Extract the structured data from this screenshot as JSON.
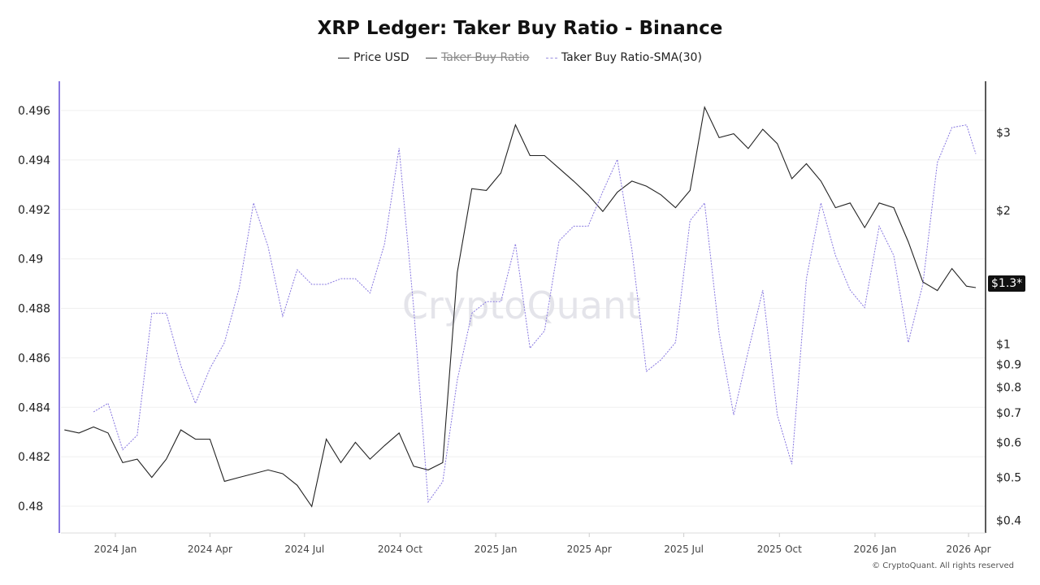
{
  "chart_data": {
    "type": "line",
    "title": "XRP Ledger: Taker Buy Ratio - Binance",
    "legend": {
      "placement": "top-center",
      "entries": [
        {
          "label": "Price USD",
          "color": "#222222",
          "style": "solid",
          "visible": true
        },
        {
          "label": "Taker Buy Ratio",
          "color": "#444444",
          "style": "solid",
          "visible": false
        },
        {
          "label": "Taker Buy Ratio-SMA(30)",
          "color": "#8878e0",
          "style": "dashed",
          "visible": true
        }
      ]
    },
    "watermark": "CryptoQuant",
    "copyright": "© CryptoQuant. All rights reserved",
    "grid": true,
    "left_axis": {
      "ylim": [
        0.479,
        0.4972
      ],
      "ticks": [
        "0.496",
        "0.494",
        "0.492",
        "0.49",
        "0.488",
        "0.486",
        "0.484",
        "0.482",
        "0.48"
      ],
      "tick_values": [
        0.496,
        0.494,
        0.492,
        0.49,
        0.488,
        0.486,
        0.484,
        0.482,
        0.48
      ],
      "color": "#8878e0"
    },
    "right_axis": {
      "scale": "log",
      "ticks": [
        "$3",
        "$2",
        "$1",
        "$0.9",
        "$0.8",
        "$0.7",
        "$0.6",
        "$0.5",
        "$0.4"
      ],
      "tick_values": [
        3,
        2,
        1,
        0.9,
        0.8,
        0.7,
        0.6,
        0.5,
        0.4
      ],
      "current_label": "$1.3*",
      "current_value": 1.3
    },
    "x_axis": {
      "ticks": [
        "2024 Jan",
        "2024 Apr",
        "2024 Jul",
        "2024 Oct",
        "2025 Jan",
        "2025 Apr",
        "2025 Jul",
        "2025 Oct",
        "2026 Jan",
        "2026 Apr"
      ],
      "tick_dates": [
        "2024-01-01",
        "2024-04-01",
        "2024-07-01",
        "2024-10-01",
        "2025-01-01",
        "2025-04-01",
        "2025-07-01",
        "2025-10-01",
        "2026-01-01",
        "2026-04-01"
      ]
    },
    "x": [
      "2023-11-13",
      "2023-11-27",
      "2023-12-11",
      "2023-12-25",
      "2024-01-08",
      "2024-01-22",
      "2024-02-05",
      "2024-02-19",
      "2024-03-04",
      "2024-03-18",
      "2024-04-01",
      "2024-04-15",
      "2024-04-29",
      "2024-05-13",
      "2024-05-27",
      "2024-06-10",
      "2024-06-24",
      "2024-07-08",
      "2024-07-22",
      "2024-08-05",
      "2024-08-19",
      "2024-09-02",
      "2024-09-16",
      "2024-09-30",
      "2024-10-14",
      "2024-10-28",
      "2024-11-11",
      "2024-11-25",
      "2024-12-09",
      "2024-12-23",
      "2025-01-06",
      "2025-01-20",
      "2025-02-03",
      "2025-02-17",
      "2025-03-03",
      "2025-03-17",
      "2025-03-31",
      "2025-04-14",
      "2025-04-28",
      "2025-05-12",
      "2025-05-26",
      "2025-06-09",
      "2025-06-23",
      "2025-07-07",
      "2025-07-21",
      "2025-08-04",
      "2025-08-18",
      "2025-09-01",
      "2025-09-15",
      "2025-09-29",
      "2025-10-13",
      "2025-10-27",
      "2025-11-10",
      "2025-11-24",
      "2025-12-08",
      "2025-12-22",
      "2026-01-05",
      "2026-01-19",
      "2026-02-02",
      "2026-02-16",
      "2026-03-02",
      "2026-03-16",
      "2026-03-30",
      "2026-04-08"
    ],
    "series": [
      {
        "name": "Price USD",
        "axis": "right",
        "values": [
          0.64,
          0.63,
          0.65,
          0.63,
          0.54,
          0.55,
          0.5,
          0.55,
          0.64,
          0.61,
          0.61,
          0.49,
          0.5,
          0.51,
          0.52,
          0.51,
          0.48,
          0.43,
          0.61,
          0.54,
          0.6,
          0.55,
          0.59,
          0.63,
          0.53,
          0.52,
          0.54,
          1.45,
          2.24,
          2.22,
          2.43,
          3.12,
          2.66,
          2.66,
          2.49,
          2.33,
          2.17,
          1.99,
          2.2,
          2.33,
          2.27,
          2.17,
          2.03,
          2.22,
          3.42,
          2.92,
          2.98,
          2.76,
          3.05,
          2.83,
          2.36,
          2.55,
          2.33,
          2.03,
          2.08,
          1.83,
          2.08,
          2.03,
          1.7,
          1.38,
          1.32,
          1.48,
          1.35,
          1.34
        ]
      },
      {
        "name": "Taker Buy Ratio-SMA(30)",
        "axis": "left",
        "values": [
          null,
          null,
          0.48381,
          0.48416,
          0.48228,
          0.48287,
          0.4878,
          0.4878,
          0.48568,
          0.48416,
          0.48557,
          0.48662,
          0.48879,
          0.49226,
          0.49049,
          0.48768,
          0.48956,
          0.48897,
          0.48897,
          0.4892,
          0.4892,
          0.48862,
          0.49061,
          0.49448,
          0.48803,
          0.48017,
          0.48099,
          0.4851,
          0.4878,
          0.48827,
          0.48827,
          0.49061,
          0.48639,
          0.48709,
          0.49073,
          0.49132,
          0.49132,
          0.49272,
          0.49402,
          0.49038,
          0.48545,
          0.48592,
          0.48662,
          0.49155,
          0.49226,
          0.48698,
          0.48369,
          0.48627,
          0.48874,
          0.48369,
          0.4817,
          0.4892,
          0.49226,
          0.49014,
          0.48874,
          0.48803,
          0.49132,
          0.49014,
          0.48662,
          0.48897,
          0.4939,
          0.49531,
          0.49542,
          0.49425
        ]
      }
    ]
  }
}
